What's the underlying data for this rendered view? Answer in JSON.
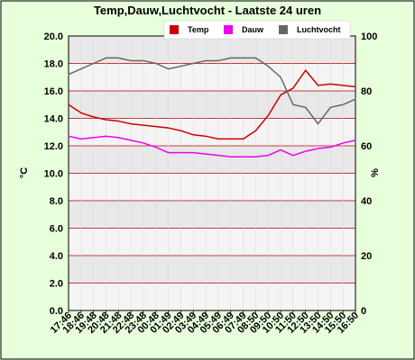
{
  "chart_data": {
    "type": "line",
    "title": "Temp,Dauw,Luchtvocht - Laatste 24 uren",
    "ylabel_left": "°C",
    "ylabel_right": "%",
    "ylim_left": [
      0,
      20
    ],
    "ylim_right": [
      0,
      100
    ],
    "yticks_left": [
      "0.0",
      "2.0",
      "4.0",
      "6.0",
      "8.0",
      "10.0",
      "12.0",
      "14.0",
      "16.0",
      "18.0",
      "20.0"
    ],
    "yticks_right": [
      "0",
      "20",
      "40",
      "60",
      "80",
      "100"
    ],
    "grid": true,
    "legend_placement": "top-right",
    "categories": [
      "17:46",
      "18:46",
      "19:48",
      "20:48",
      "21:48",
      "22:48",
      "23:48",
      "00:48",
      "01:49",
      "02:49",
      "03:49",
      "04:49",
      "05:49",
      "06:49",
      "07:49",
      "08:50",
      "09:50",
      "10:50",
      "11:50",
      "12:50",
      "13:50",
      "14:50",
      "15:50",
      "16:50"
    ],
    "series": [
      {
        "name": "Temp",
        "axis": "left",
        "color": "#cc0000",
        "values": [
          15.0,
          14.4,
          14.1,
          13.9,
          13.8,
          13.6,
          13.5,
          13.4,
          13.3,
          13.1,
          12.8,
          12.7,
          12.5,
          12.5,
          12.5,
          13.1,
          14.2,
          15.7,
          16.2,
          17.5,
          16.4,
          16.5,
          16.4,
          16.3
        ]
      },
      {
        "name": "Dauw",
        "axis": "left",
        "color": "#ee00ee",
        "values": [
          12.7,
          12.5,
          12.6,
          12.7,
          12.6,
          12.4,
          12.2,
          11.9,
          11.5,
          11.5,
          11.5,
          11.4,
          11.3,
          11.2,
          11.2,
          11.2,
          11.3,
          11.7,
          11.3,
          11.6,
          11.8,
          11.9,
          12.2,
          12.4
        ]
      },
      {
        "name": "Luchtvocht",
        "axis": "right",
        "color": "#666666",
        "values": [
          86,
          88,
          90,
          92,
          92,
          91,
          91,
          90,
          88,
          89,
          90,
          91,
          91,
          92,
          92,
          92,
          89,
          85,
          75,
          74,
          68,
          74,
          75,
          77
        ]
      }
    ]
  },
  "colors": {
    "background": "#e8ffdc",
    "plot_band_light": "#f4f4f4",
    "plot_band_dark": "#e8e8e8",
    "grid": "#b00000"
  }
}
